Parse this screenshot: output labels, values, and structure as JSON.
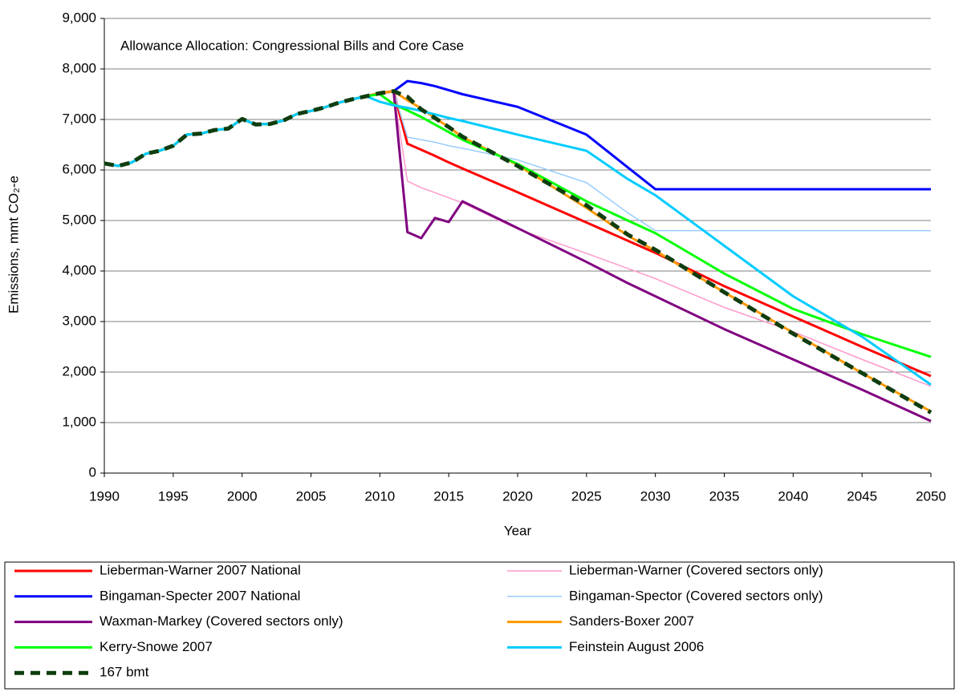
{
  "chart_data": {
    "type": "line",
    "title": "Allowance Allocation: Congressional Bills and Core Case",
    "x_label": "Year",
    "y_label": "Emissions, mmt CO₂-e",
    "x": [
      1990,
      1991,
      1992,
      1993,
      1994,
      1995,
      1996,
      1997,
      1998,
      1999,
      2000,
      2001,
      2002,
      2003,
      2004,
      2005,
      2006,
      2007,
      2008,
      2009,
      2010,
      2011,
      2012,
      2013,
      2014,
      2015,
      2016,
      2020,
      2025,
      2028,
      2030,
      2035,
      2040,
      2045,
      2050
    ],
    "xlim": [
      1990,
      2050
    ],
    "xticks": [
      1990,
      1995,
      2000,
      2005,
      2010,
      2015,
      2020,
      2025,
      2030,
      2035,
      2040,
      2045,
      2050
    ],
    "ylim": [
      0,
      9000
    ],
    "yticks": [
      0,
      {
        "value": 1000,
        "label": "1,000"
      },
      {
        "value": 2000,
        "label": "2,000"
      },
      {
        "value": 3000,
        "label": "3,000"
      },
      {
        "value": 4000,
        "label": "4,000"
      },
      {
        "value": 5000,
        "label": "5,000"
      },
      {
        "value": 6000,
        "label": "6,000"
      },
      {
        "value": 7000,
        "label": "7,000"
      },
      {
        "value": 8000,
        "label": "8,000"
      },
      {
        "value": 9000,
        "label": "9,000"
      }
    ],
    "grid": true,
    "legend": "bottom",
    "series": [
      {
        "name": "Lieberman-Warner 2007 National",
        "color": "#ff0000",
        "width": 3,
        "values": [
          6130,
          6080,
          6150,
          6320,
          6380,
          6480,
          6700,
          6720,
          6790,
          6820,
          7010,
          6900,
          6910,
          6980,
          7110,
          7170,
          7240,
          7330,
          7400,
          7460,
          7520,
          7560,
          6520,
          6400,
          6280,
          6150,
          6030,
          5560,
          4960,
          4600,
          4360,
          3700,
          3100,
          2500,
          1920
        ]
      },
      {
        "name": "Lieberman-Warner (Covered sectors only)",
        "color": "#ff99cc",
        "width": 1.5,
        "values": [
          6130,
          6080,
          6150,
          6320,
          6380,
          6480,
          6700,
          6720,
          6790,
          6820,
          7010,
          6900,
          6910,
          6980,
          7110,
          7170,
          7240,
          7330,
          7400,
          7460,
          7520,
          7560,
          5780,
          5650,
          5550,
          5450,
          5350,
          4830,
          4350,
          4050,
          3850,
          3280,
          2800,
          2250,
          1720
        ]
      },
      {
        "name": "Bingaman-Specter 2007 National",
        "color": "#0000ff",
        "width": 3,
        "values": [
          6130,
          6080,
          6150,
          6320,
          6380,
          6480,
          6700,
          6720,
          6790,
          6820,
          7010,
          6900,
          6910,
          6980,
          7110,
          7170,
          7240,
          7330,
          7400,
          7460,
          7520,
          7560,
          7760,
          7720,
          7660,
          7580,
          7500,
          7250,
          6700,
          6050,
          5620,
          5620,
          5620,
          5620,
          5620
        ]
      },
      {
        "name": "Bingaman-Spector (Covered sectors only)",
        "color": "#99ccff",
        "width": 1.5,
        "values": [
          6130,
          6080,
          6150,
          6320,
          6380,
          6480,
          6700,
          6720,
          6790,
          6820,
          7010,
          6900,
          6910,
          6980,
          7110,
          7170,
          7240,
          7330,
          7400,
          7460,
          7520,
          7560,
          6650,
          6600,
          6550,
          6480,
          6430,
          6200,
          5750,
          5150,
          4800,
          4800,
          4800,
          4800,
          4800
        ]
      },
      {
        "name": "Waxman-Markey (Covered sectors only)",
        "color": "#800080",
        "width": 3,
        "values": [
          6130,
          6080,
          6150,
          6320,
          6380,
          6480,
          6700,
          6720,
          6790,
          6820,
          7010,
          6900,
          6910,
          6980,
          7110,
          7170,
          7240,
          7330,
          7400,
          7460,
          7520,
          7560,
          4770,
          4650,
          5050,
          4970,
          5380,
          4850,
          4180,
          3760,
          3500,
          2850,
          2250,
          1650,
          1030
        ]
      },
      {
        "name": "Sanders-Boxer 2007",
        "color": "#ff9900",
        "width": 3,
        "values": [
          6130,
          6080,
          6150,
          6320,
          6380,
          6480,
          6700,
          6720,
          6790,
          6820,
          7010,
          6900,
          6910,
          6980,
          7110,
          7170,
          7240,
          7330,
          7400,
          7460,
          7520,
          7560,
          7380,
          7220,
          7030,
          6850,
          6650,
          6100,
          5250,
          4700,
          4400,
          3580,
          2780,
          1980,
          1220
        ]
      },
      {
        "name": "Kerry-Snowe 2007",
        "color": "#00ff00",
        "width": 3,
        "values": [
          6130,
          6080,
          6150,
          6320,
          6380,
          6480,
          6700,
          6720,
          6790,
          6820,
          7010,
          6900,
          6910,
          6980,
          7110,
          7170,
          7240,
          7330,
          7400,
          7460,
          7500,
          7300,
          7180,
          7050,
          6900,
          6750,
          6600,
          6120,
          5380,
          5000,
          4750,
          3950,
          3250,
          2750,
          2300
        ]
      },
      {
        "name": "Feinstein August 2006",
        "color": "#00ccff",
        "width": 3,
        "values": [
          6130,
          6080,
          6150,
          6320,
          6380,
          6480,
          6700,
          6720,
          6790,
          6820,
          7010,
          6900,
          6910,
          6980,
          7110,
          7170,
          7240,
          7330,
          7400,
          7460,
          7350,
          7280,
          7230,
          7170,
          7100,
          7030,
          6970,
          6700,
          6380,
          5820,
          5500,
          4500,
          3500,
          2700,
          1750
        ]
      },
      {
        "name": "167 bmt",
        "color": "#0f3d0f",
        "width": 5,
        "dash": true,
        "values": [
          6130,
          6080,
          6150,
          6320,
          6380,
          6480,
          6700,
          6720,
          6790,
          6820,
          7010,
          6900,
          6910,
          6980,
          7110,
          7170,
          7240,
          7330,
          7400,
          7460,
          7520,
          7560,
          7450,
          7200,
          7030,
          6850,
          6660,
          6080,
          5300,
          4720,
          4420,
          3580,
          2760,
          1980,
          1200
        ]
      }
    ]
  }
}
